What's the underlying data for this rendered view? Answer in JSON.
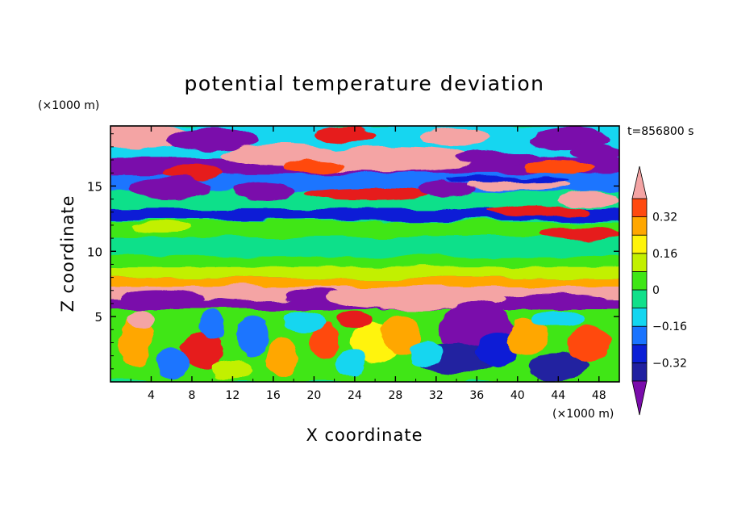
{
  "chart_data": {
    "type": "heatmap",
    "title": "potential temperature deviation",
    "xlabel": "X coordinate",
    "ylabel": "Z coordinate",
    "x_unit": "(×1000 m)",
    "y_unit": "(×1000 m)",
    "time_label": "t=856800 s",
    "xlim": [
      0,
      50
    ],
    "ylim": [
      0,
      19.6
    ],
    "x_ticks": [
      4,
      8,
      12,
      16,
      20,
      24,
      28,
      32,
      36,
      40,
      44,
      48
    ],
    "y_ticks": [
      5,
      10,
      15
    ],
    "colorbar": {
      "tick_values": [
        0.32,
        0.16,
        0,
        -0.16,
        -0.32
      ],
      "tick_labels": [
        "0.32",
        "0.16",
        "0",
        "−0.16",
        "−0.32"
      ],
      "levels": [
        -0.4,
        -0.32,
        -0.24,
        -0.16,
        -0.08,
        0,
        0.08,
        0.16,
        0.24,
        0.32,
        0.4
      ],
      "colors": [
        "#7a0cab",
        "#2020a0",
        "#0b1fd6",
        "#1a74ff",
        "#13d6f0",
        "#10e08a",
        "#3fe615",
        "#c2f000",
        "#fff40a",
        "#ffa700",
        "#ff4a10",
        "#e61a1a",
        "#f4a4a4"
      ]
    }
  }
}
